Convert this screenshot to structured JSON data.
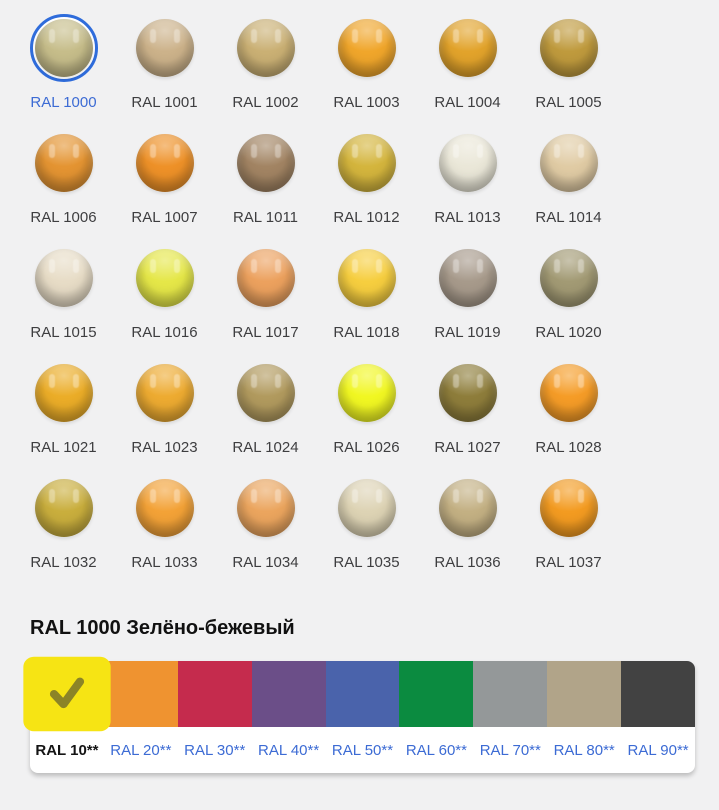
{
  "theme": {
    "page_background": "#f1f1f2",
    "link_color": "#3c6bd4",
    "selected_ring_color": "#2f6cdb",
    "swatch_label_color": "#3e3e40",
    "title_color": "#111111",
    "card_background": "#ffffff"
  },
  "palette_grid": {
    "items": [
      {
        "code": "RAL 1000",
        "color": "#c6bd8a",
        "selected": true
      },
      {
        "code": "RAL 1001",
        "color": "#ccb28a"
      },
      {
        "code": "RAL 1002",
        "color": "#cab074"
      },
      {
        "code": "RAL 1003",
        "color": "#f0a62b"
      },
      {
        "code": "RAL 1004",
        "color": "#e2a32b"
      },
      {
        "code": "RAL 1005",
        "color": "#bf9a3d"
      },
      {
        "code": "RAL 1006",
        "color": "#e49432"
      },
      {
        "code": "RAL 1007",
        "color": "#ee9128"
      },
      {
        "code": "RAL 1011",
        "color": "#a28463"
      },
      {
        "code": "RAL 1012",
        "color": "#d4b53d"
      },
      {
        "code": "RAL 1013",
        "color": "#eae7d8"
      },
      {
        "code": "RAL 1014",
        "color": "#e0cba4"
      },
      {
        "code": "RAL 1015",
        "color": "#e7dcc6"
      },
      {
        "code": "RAL 1016",
        "color": "#e5e748"
      },
      {
        "code": "RAL 1017",
        "color": "#eca15e"
      },
      {
        "code": "RAL 1018",
        "color": "#f6ce3f"
      },
      {
        "code": "RAL 1019",
        "color": "#a79a8b"
      },
      {
        "code": "RAL 1020",
        "color": "#a29a74"
      },
      {
        "code": "RAL 1021",
        "color": "#ebad28"
      },
      {
        "code": "RAL 1023",
        "color": "#edab31"
      },
      {
        "code": "RAL 1024",
        "color": "#b19a5e"
      },
      {
        "code": "RAL 1026",
        "color": "#f1f722"
      },
      {
        "code": "RAL 1027",
        "color": "#8e7d3b"
      },
      {
        "code": "RAL 1028",
        "color": "#f59c27"
      },
      {
        "code": "RAL 1032",
        "color": "#c9ae3d"
      },
      {
        "code": "RAL 1033",
        "color": "#f3a237"
      },
      {
        "code": "RAL 1034",
        "color": "#eba55e"
      },
      {
        "code": "RAL 1035",
        "color": "#ddd3b4"
      },
      {
        "code": "RAL 1036",
        "color": "#c3b083"
      },
      {
        "code": "RAL 1037",
        "color": "#f39b21"
      }
    ]
  },
  "detail": {
    "title": "RAL 1000 Зелёно-бежевый"
  },
  "series_bar": {
    "check_icon_color": "#8b8427",
    "items": [
      {
        "label": "RAL 10**",
        "color": "#f6e414",
        "selected": true
      },
      {
        "label": "RAL 20**",
        "color": "#ef9330"
      },
      {
        "label": "RAL 30**",
        "color": "#c52b4d"
      },
      {
        "label": "RAL 40**",
        "color": "#6b4e88"
      },
      {
        "label": "RAL 50**",
        "color": "#4a63ab"
      },
      {
        "label": "RAL 60**",
        "color": "#0b8b40"
      },
      {
        "label": "RAL 70**",
        "color": "#949899"
      },
      {
        "label": "RAL 80**",
        "color": "#b1a489"
      },
      {
        "label": "RAL 90**",
        "color": "#424242"
      }
    ]
  }
}
